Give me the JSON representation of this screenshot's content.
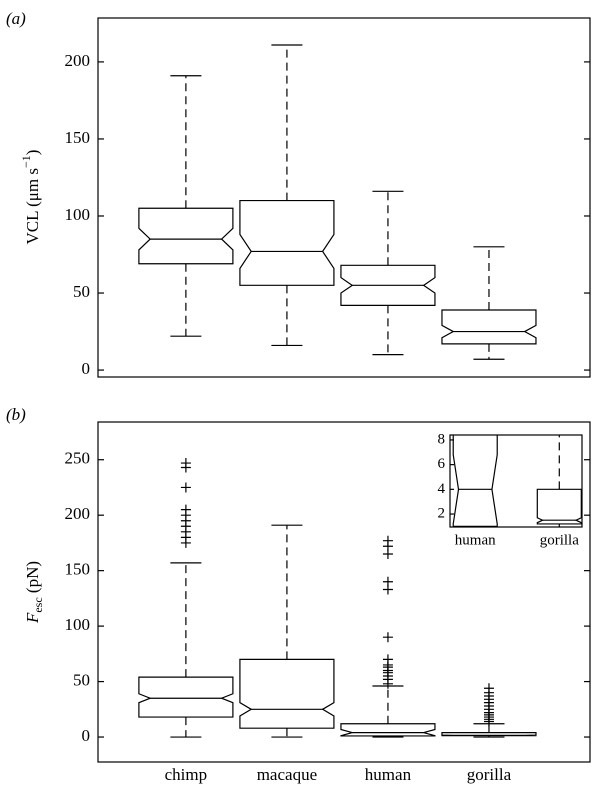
{
  "chart_data": [
    {
      "type": "box",
      "panel": "(a)",
      "ylabel": [
        "VCL (μm s",
        "−1",
        ")"
      ],
      "whisker_high": [
        191,
        211,
        116,
        80
      ],
      "q3": [
        105,
        110,
        68,
        39
      ],
      "notch_high": [
        92,
        88,
        60,
        29
      ],
      "median": [
        85,
        77,
        55,
        25
      ],
      "notch_low": [
        78,
        66,
        50,
        21
      ],
      "q1": [
        69,
        55,
        42,
        17
      ],
      "whisker_low": [
        22,
        16,
        10,
        7
      ],
      "outliers": [
        [],
        [],
        [],
        []
      ],
      "xlim": [
        0.13,
        5
      ],
      "ylim": [
        -4.5,
        228.5
      ],
      "yticks": [
        0,
        50,
        100,
        150,
        200
      ]
    },
    {
      "type": "box",
      "panel": "(b)",
      "ylabel": [
        "F",
        "esc",
        " (pN)"
      ],
      "categories": [
        "chimp",
        "macaque",
        "human",
        "gorilla"
      ],
      "whisker_high": [
        157,
        191,
        46,
        12
      ],
      "q3": [
        54,
        70,
        12,
        4
      ],
      "notch_high": [
        39,
        31,
        6.8,
        1.7
      ],
      "median": [
        35,
        25,
        4,
        1.5
      ],
      "notch_low": [
        31,
        19,
        1.2,
        1.3
      ],
      "q1": [
        18,
        8,
        1,
        1.2
      ],
      "whisker_low": [
        0,
        0,
        0,
        0
      ],
      "outliers": [
        [
          175,
          180,
          185,
          190,
          195,
          200,
          205,
          225,
          243,
          247
        ],
        [],
        [
          48,
          52,
          55,
          58,
          60,
          63,
          65,
          70,
          90,
          133,
          140,
          165,
          172,
          177
        ],
        [
          14,
          16,
          18,
          20,
          22,
          25,
          28,
          31,
          34,
          37,
          40,
          44
        ]
      ],
      "xlim": [
        0.13,
        5
      ],
      "ylim": [
        -22.5,
        284
      ],
      "yticks": [
        0,
        50,
        100,
        150,
        200,
        250
      ],
      "inset": {
        "categories": [
          "human",
          "gorilla"
        ],
        "xlim": [
          2.7,
          4.27
        ],
        "ylim": [
          0.95,
          8.4
        ],
        "yticks": [
          2,
          4,
          6,
          8
        ]
      }
    }
  ]
}
